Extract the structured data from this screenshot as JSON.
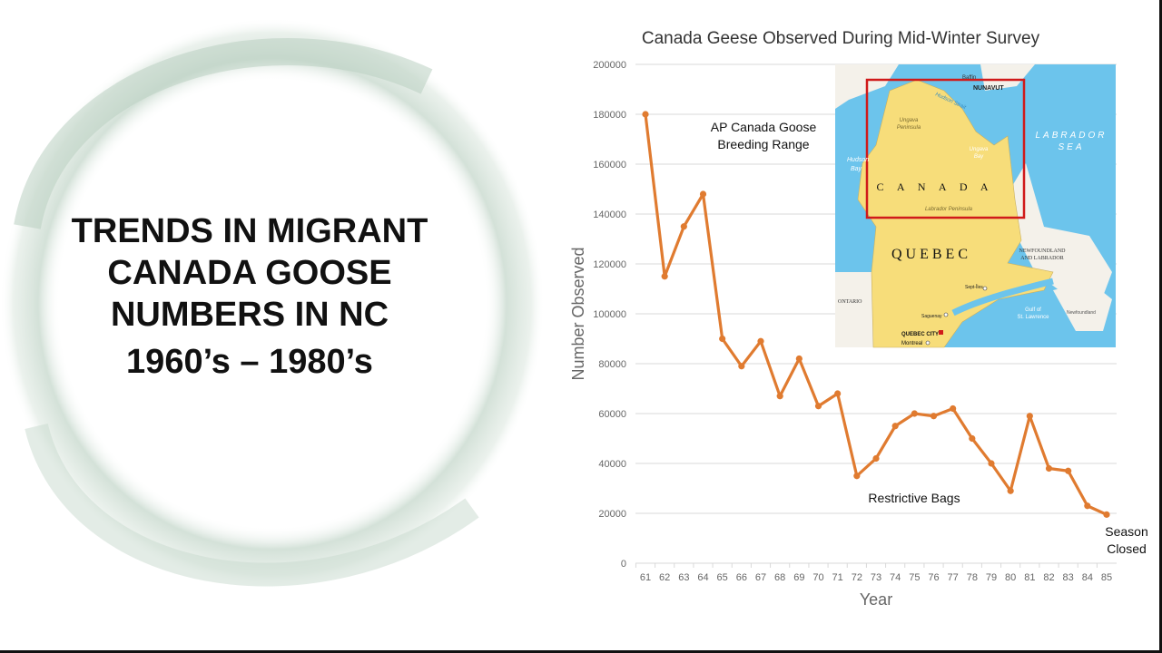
{
  "slide": {
    "title_lines": [
      "TRENDS IN MIGRANT",
      "CANADA GOOSE",
      "NUMBERS IN NC"
    ],
    "subtitle": "1960’s – 1980’s"
  },
  "chart_data": {
    "type": "line",
    "title": "Canada Geese Observed During Mid-Winter Survey",
    "xlabel": "Year",
    "ylabel": "Number Observed",
    "categories": [
      "61",
      "62",
      "63",
      "64",
      "65",
      "66",
      "67",
      "68",
      "69",
      "70",
      "71",
      "72",
      "73",
      "74",
      "75",
      "76",
      "77",
      "78",
      "79",
      "80",
      "81",
      "82",
      "83",
      "84",
      "85"
    ],
    "values": [
      180000,
      115000,
      135000,
      148000,
      90000,
      79000,
      89000,
      67000,
      82000,
      63000,
      68000,
      35000,
      42000,
      55000,
      60000,
      59000,
      62000,
      50000,
      40000,
      29000,
      59000,
      38000,
      37000,
      23000,
      19500
    ],
    "ylim": [
      0,
      200000
    ],
    "yticks": [
      0,
      20000,
      40000,
      60000,
      80000,
      100000,
      120000,
      140000,
      160000,
      180000,
      200000
    ],
    "grid": true,
    "line_color": "#E07B30",
    "annotations": [
      {
        "text": [
          "AP Canada Goose",
          "Breeding Range"
        ]
      },
      {
        "text": [
          "Restrictive Bags"
        ]
      },
      {
        "text": [
          "Season",
          "Closed"
        ]
      }
    ]
  },
  "map": {
    "labels": {
      "nunavut": "NUNAVUT",
      "labrador_sea": [
        "LABRADOR",
        "SEA"
      ],
      "canada": "C A N A D A",
      "quebec": "QUEBEC",
      "nfl": [
        "NEWFOUNDLAND",
        "AND LABRADOR"
      ],
      "ontario": "ONTARIO",
      "quebec_city": "QUEBEC CITY",
      "montreal": "Montreal",
      "ungava": [
        "Ungava",
        "Peninsula"
      ],
      "labrador_peninsula": "Labrador Peninsula",
      "hudson_bay": [
        "Hudson",
        "Bay"
      ],
      "hudson_strait": "Hudson Strait",
      "baffin": "Baffin",
      "ungava_bay": [
        "Ungava",
        "Bay"
      ],
      "gulf": [
        "Gulf of",
        "St. Lawrence"
      ],
      "sept_iles": "Sept-Îles",
      "saguenay": "Saguenay",
      "newfoundland": "Newfoundland"
    },
    "colors": {
      "water": "#6CC4EC",
      "quebec": "#F7DD7A",
      "land": "#F4F1EA",
      "highlight": "#D01A1A"
    }
  }
}
